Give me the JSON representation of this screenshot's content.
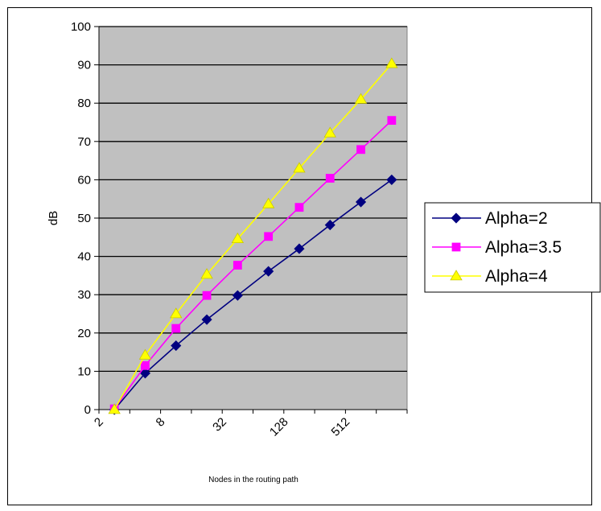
{
  "chart_data": {
    "type": "line",
    "xlabel": "Nodes in the routing path",
    "ylabel": "dB",
    "ylim": [
      0,
      100
    ],
    "yticks": [
      0,
      10,
      20,
      30,
      40,
      50,
      60,
      70,
      80,
      90,
      100
    ],
    "xtick_labels": [
      "2",
      "8",
      "32",
      "128",
      "512"
    ],
    "x": [
      2,
      4,
      8,
      16,
      32,
      64,
      128,
      256,
      512,
      1024
    ],
    "x_scale": "log2",
    "grid": "horizontal",
    "plot_background": "#c0c0c0",
    "legend_position": "right",
    "series": [
      {
        "name": "Alpha=2",
        "color": "#000080",
        "marker": "diamond",
        "values": [
          0,
          9.5,
          16.7,
          23.5,
          29.8,
          36.1,
          42.0,
          48.2,
          54.2,
          60.0
        ]
      },
      {
        "name": "Alpha=3.5",
        "color": "#ff00ff",
        "marker": "square",
        "values": [
          0.2,
          11.5,
          21.2,
          29.8,
          37.7,
          45.2,
          52.8,
          60.4,
          67.9,
          75.5
        ]
      },
      {
        "name": "Alpha=4",
        "color": "#ffff00",
        "marker": "triangle",
        "values": [
          0,
          14.2,
          25.0,
          35.3,
          44.6,
          53.7,
          63.0,
          72.2,
          81.0,
          90.3
        ]
      }
    ]
  }
}
